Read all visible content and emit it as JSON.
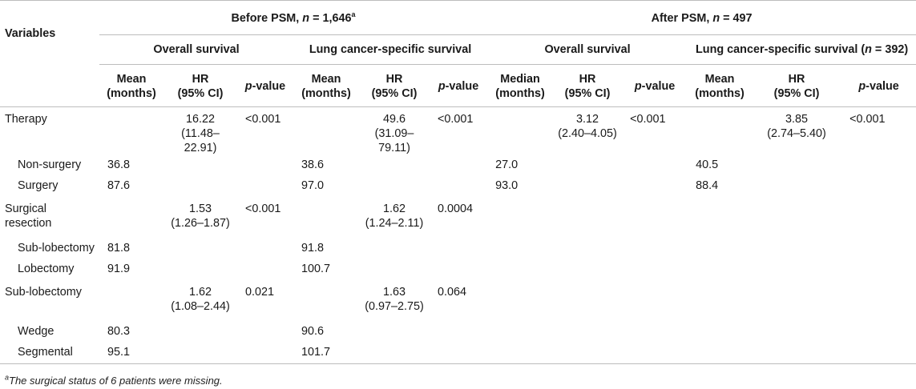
{
  "header": {
    "variables": "Variables",
    "before_psm": {
      "text": "Before PSM, ",
      "n_label": "n",
      "n_value": " = 1,646",
      "sup": "a"
    },
    "after_psm": {
      "text": "After PSM, ",
      "n_label": "n",
      "n_value": " = 497"
    },
    "overall_survival": "Overall survival",
    "lung_cancer_survival": "Lung cancer-specific survival",
    "lung_cancer_survival_after": {
      "text": "Lung cancer-specific survival (",
      "n_label": "n",
      "n_value": " = 392)"
    },
    "mean": "Mean",
    "median": "Median",
    "months": "(months)",
    "hr": "HR",
    "ci": "(95% CI)",
    "p": "p",
    "value": "-value"
  },
  "rows": [
    {
      "label": "Therapy",
      "indent": false,
      "b_os_mean": "",
      "b_os_hr": "16.22",
      "b_os_ci": "(11.48–22.91)",
      "b_os_p": "<0.001",
      "b_lc_mean": "",
      "b_lc_hr": "49.6",
      "b_lc_ci": "(31.09–79.11)",
      "b_lc_p": "<0.001",
      "a_os_median": "",
      "a_os_hr": "3.12",
      "a_os_ci": "(2.40–4.05)",
      "a_os_p": "<0.001",
      "a_lc_mean": "",
      "a_lc_hr": "3.85",
      "a_lc_ci": "(2.74–5.40)",
      "a_lc_p": "<0.001"
    },
    {
      "label": "Non-surgery",
      "indent": true,
      "b_os_mean": "36.8",
      "b_lc_mean": "38.6",
      "a_os_median": "27.0",
      "a_lc_mean": "40.5"
    },
    {
      "label": "Surgery",
      "indent": true,
      "b_os_mean": "87.6",
      "b_lc_mean": "97.0",
      "a_os_median": "93.0",
      "a_lc_mean": "88.4"
    },
    {
      "label": "Surgical resection",
      "indent": false,
      "b_os_hr": "1.53",
      "b_os_ci": "(1.26–1.87)",
      "b_os_p": "<0.001",
      "b_lc_hr": "1.62",
      "b_lc_ci": "(1.24–2.11)",
      "b_lc_p": "0.0004"
    },
    {
      "label": "Sub-lobectomy",
      "indent": true,
      "b_os_mean": "81.8",
      "b_lc_mean": "91.8"
    },
    {
      "label": "Lobectomy",
      "indent": true,
      "b_os_mean": "91.9",
      "b_lc_mean": "100.7"
    },
    {
      "label": "Sub-lobectomy",
      "indent": false,
      "b_os_hr": "1.62",
      "b_os_ci": "(1.08–2.44)",
      "b_os_p": "0.021",
      "b_lc_hr": "1.63",
      "b_lc_ci": "(0.97–2.75)",
      "b_lc_p": "0.064"
    },
    {
      "label": "Wedge",
      "indent": true,
      "b_os_mean": "80.3",
      "b_lc_mean": "90.6"
    },
    {
      "label": "Segmental",
      "indent": true,
      "b_os_mean": "95.1",
      "b_lc_mean": "101.7"
    }
  ],
  "footnote": {
    "sup": "a",
    "text": "The surgical status of 6 patients were missing."
  }
}
